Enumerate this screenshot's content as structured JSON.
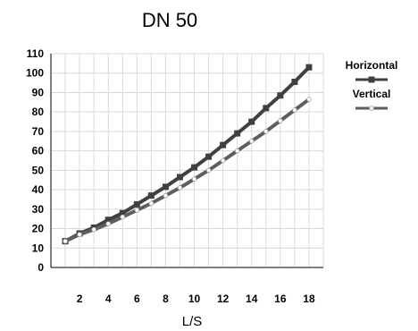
{
  "chart_data": {
    "type": "line",
    "title": "DN 50",
    "xlabel": "L/S",
    "ylabel": "",
    "xlim": [
      0,
      19
    ],
    "ylim": [
      0,
      110
    ],
    "x_ticks": [
      "2",
      "4",
      "6",
      "8",
      "10",
      "12",
      "14",
      "16",
      "18"
    ],
    "y_ticks": [
      "0",
      "10",
      "20",
      "30",
      "40",
      "50",
      "60",
      "70",
      "80",
      "90",
      "100",
      "110"
    ],
    "grid": true,
    "legend_position": "right",
    "x": [
      1,
      2,
      3,
      4,
      5,
      6,
      7,
      8,
      9,
      10,
      11,
      12,
      13,
      14,
      15,
      16,
      17,
      18
    ],
    "series": [
      {
        "name": "Horizontal",
        "color": "#404040",
        "marker": "square",
        "values": [
          13.5,
          17.5,
          20.5,
          24.5,
          28,
          32.5,
          37,
          41.5,
          46.5,
          51.5,
          57,
          63,
          69,
          75,
          82,
          88.5,
          95.5,
          103
        ]
      },
      {
        "name": "Vertical",
        "color": "#5e5e5e",
        "marker": "diamond",
        "values": [
          13.5,
          17,
          19.5,
          22.5,
          26,
          29.5,
          33,
          37,
          41,
          45.5,
          50,
          55,
          60,
          65,
          70,
          75.5,
          81,
          86.5
        ]
      }
    ]
  }
}
